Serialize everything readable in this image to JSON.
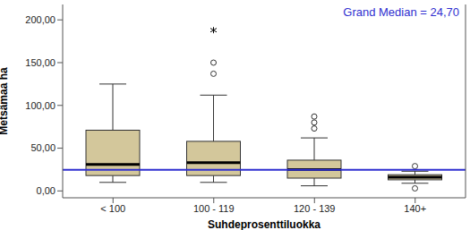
{
  "chart_data": {
    "type": "boxplot",
    "x_label": "Suhdeprosenttiluokka",
    "y_label": "Metsämaa ha",
    "categories": [
      "< 100",
      "100 - 119",
      "120 - 139",
      "140+"
    ],
    "boxes": [
      {
        "min": 10,
        "q1": 18,
        "median": 31,
        "q3": 71,
        "max": 125,
        "outliers": [],
        "extremes": []
      },
      {
        "min": 10,
        "q1": 18,
        "median": 33,
        "q3": 58,
        "max": 112,
        "outliers": [
          137,
          150
        ],
        "extremes": [
          188
        ]
      },
      {
        "min": 6,
        "q1": 15,
        "median": 25,
        "q3": 36,
        "max": 62,
        "outliers": [
          73,
          80,
          87
        ],
        "extremes": []
      },
      {
        "min": 9,
        "q1": 13,
        "median": 16,
        "q3": 19,
        "max": 23,
        "outliers": [
          29,
          3
        ],
        "extremes": []
      }
    ],
    "color": "#d3c79b",
    "ylim": [
      -8,
      218
    ],
    "yticks": [
      {
        "value": 0,
        "label": "0,00"
      },
      {
        "value": 50,
        "label": "50,00"
      },
      {
        "value": 100,
        "label": "100,00"
      },
      {
        "value": 150,
        "label": "150,00"
      },
      {
        "value": 200,
        "label": "200,00"
      }
    ],
    "reference_line": {
      "value": 24.7,
      "label": "Grand Median = 24,70",
      "color": "#2f2fd0"
    }
  }
}
